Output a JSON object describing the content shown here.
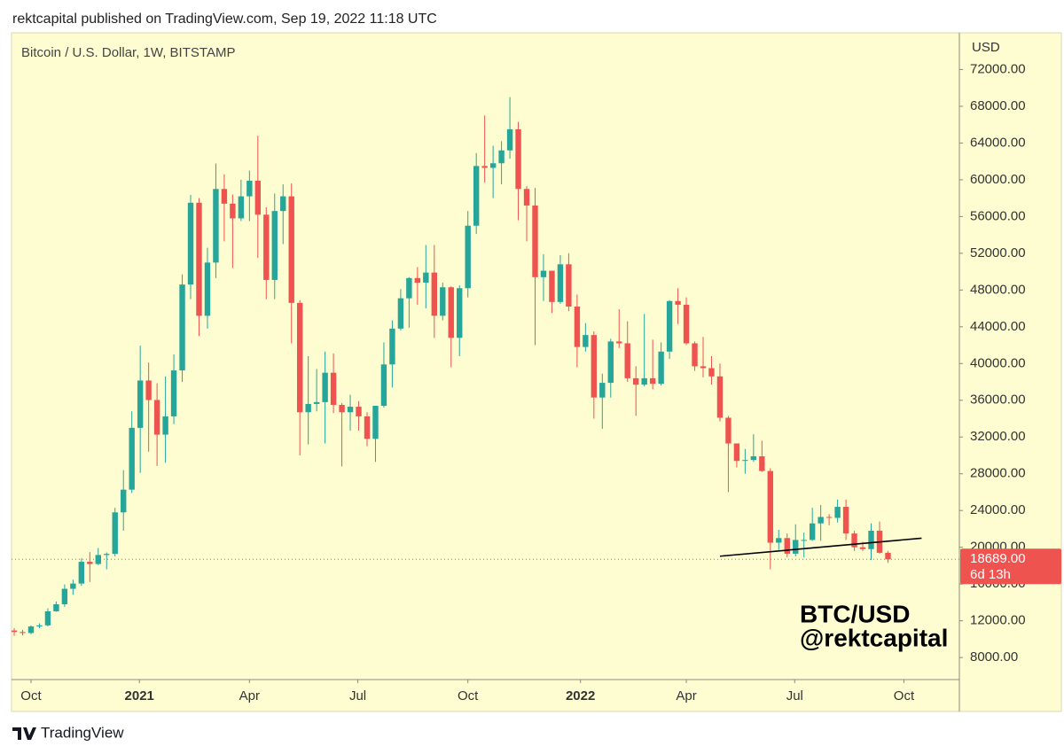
{
  "header": "rektcapital published on TradingView.com, Sep 19, 2022 11:18 UTC",
  "footer": "TradingView",
  "chart_data": {
    "type": "candlestick",
    "title": "Bitcoin / U.S. Dollar, 1W, BITSTAMP",
    "y_axis_label": "USD",
    "up_color": "#26a69a",
    "down_color": "#ef5350",
    "background": "#fefdd1",
    "grid": false,
    "open": [
      10940,
      10780,
      10670,
      11380,
      11500,
      13030,
      13800,
      15480,
      16050,
      18420,
      18180,
      19160,
      19280,
      23800,
      26270,
      33000,
      38150,
      36030,
      32260,
      34250,
      39250,
      48600,
      57500,
      45200,
      50990,
      59000,
      57400,
      55800,
      58200,
      59900,
      56200,
      49100,
      56600,
      58200,
      46600,
      34700,
      35600,
      35800,
      39000,
      35500,
      34700,
      35300,
      34250,
      31800,
      35400,
      39900,
      43800,
      47100,
      49300,
      48800,
      49900,
      45200,
      48300,
      42800,
      48200,
      55000,
      61500,
      61300,
      61800,
      63200,
      65500,
      59000,
      57200,
      49400,
      50100,
      46700,
      50800,
      46200,
      41800,
      43100,
      36300,
      37900,
      42400,
      42200,
      38400,
      37700,
      38400,
      37800,
      41300,
      46800,
      46400,
      42200,
      39700,
      39500,
      38600,
      34100,
      31300,
      29400,
      29500,
      29900,
      28300,
      20500,
      21000,
      19300,
      20800,
      20800,
      22600,
      23300,
      23200,
      24400,
      21500,
      20000,
      19800,
      21800,
      19400
    ],
    "high": [
      11180,
      11000,
      11500,
      11720,
      13350,
      14100,
      15960,
      16480,
      18800,
      19480,
      19920,
      19440,
      24300,
      28400,
      34800,
      41950,
      40100,
      37850,
      38600,
      40990,
      49700,
      58350,
      58000,
      52600,
      61780,
      60600,
      58400,
      60000,
      61000,
      64800,
      57000,
      58500,
      59500,
      59600,
      46900,
      40800,
      39400,
      41300,
      41100,
      35700,
      36600,
      35900,
      34700,
      35400,
      42300,
      44700,
      48100,
      49400,
      50500,
      52900,
      52900,
      48800,
      48400,
      48500,
      56600,
      62900,
      67000,
      63700,
      64200,
      69000,
      66300,
      59300,
      59100,
      51900,
      50100,
      51800,
      52000,
      47500,
      44400,
      43500,
      38900,
      42700,
      45900,
      44600,
      39700,
      45400,
      42600,
      42300,
      46900,
      48200,
      47200,
      42400,
      42900,
      40800,
      40000,
      34300,
      31300,
      30700,
      32300,
      31600,
      28600,
      21900,
      21500,
      22500,
      21600,
      24300,
      24600,
      23600,
      25200,
      25200,
      21800,
      20600,
      22600,
      22800,
      19600
    ],
    "low": [
      10370,
      10400,
      10530,
      11200,
      11400,
      12980,
      13520,
      14830,
      15800,
      16220,
      18060,
      17600,
      19000,
      21800,
      25900,
      28100,
      30400,
      28850,
      29200,
      33400,
      37990,
      47000,
      43000,
      43800,
      49300,
      53300,
      50400,
      55500,
      55500,
      51500,
      47000,
      47000,
      53000,
      42200,
      30000,
      31200,
      34800,
      31300,
      34600,
      28800,
      32700,
      32700,
      31000,
      29300,
      35200,
      37400,
      43600,
      43900,
      46400,
      46000,
      42800,
      44700,
      39600,
      40800,
      47200,
      54100,
      59700,
      58000,
      59500,
      62300,
      55600,
      53300,
      42000,
      46800,
      45500,
      46500,
      45700,
      39600,
      41300,
      34000,
      32900,
      36300,
      41700,
      38000,
      34300,
      37500,
      37200,
      37600,
      40500,
      44300,
      42000,
      39200,
      38500,
      37700,
      33700,
      26000,
      28700,
      28000,
      29300,
      28200,
      17600,
      19700,
      18900,
      19000,
      18900,
      20700,
      20700,
      22400,
      22700,
      20800,
      19600,
      19600,
      18600,
      19300,
      18300
    ],
    "close": [
      10780,
      10670,
      11380,
      11500,
      13030,
      13800,
      15480,
      16050,
      18420,
      18180,
      19160,
      19280,
      23800,
      26270,
      33000,
      38150,
      36030,
      32260,
      34250,
      39250,
      48600,
      57500,
      45200,
      50990,
      59000,
      57400,
      55800,
      58200,
      59900,
      56200,
      49100,
      56600,
      58200,
      46600,
      34700,
      35600,
      35800,
      39000,
      35500,
      34700,
      35300,
      34250,
      31800,
      35400,
      39900,
      43800,
      47100,
      49300,
      48800,
      49900,
      45200,
      48300,
      42800,
      48200,
      55000,
      61500,
      61300,
      61800,
      63200,
      65500,
      59000,
      57200,
      49400,
      50100,
      46700,
      50800,
      46200,
      41800,
      43100,
      36300,
      37900,
      42400,
      42200,
      38400,
      37700,
      38400,
      37800,
      41300,
      46800,
      46400,
      42200,
      39700,
      39500,
      38600,
      34100,
      31300,
      29400,
      29500,
      29900,
      28300,
      20500,
      21000,
      19300,
      20800,
      20800,
      22600,
      23300,
      23200,
      24400,
      21500,
      20000,
      19800,
      21800,
      19400,
      18689
    ],
    "xlim": [
      -0.32,
      112.5
    ],
    "xticks": [
      {
        "value": 2.0,
        "label": "Oct"
      },
      {
        "value": 14.9,
        "label": "2021"
      },
      {
        "value": 28.0,
        "label": "Apr"
      },
      {
        "value": 40.9,
        "label": "Jul"
      },
      {
        "value": 54.0,
        "label": "Oct"
      },
      {
        "value": 67.4,
        "label": "2022"
      },
      {
        "value": 80.0,
        "label": "Apr"
      },
      {
        "value": 92.9,
        "label": "Jul"
      },
      {
        "value": 105.9,
        "label": "Oct"
      }
    ],
    "ylim": [
      5600,
      76000
    ],
    "yticks": [
      {
        "value": 8000,
        "label": "8000.00"
      },
      {
        "value": 12000,
        "label": "12000.00"
      },
      {
        "value": 16000,
        "label": "16000.00"
      },
      {
        "value": 20000,
        "label": "20000.00"
      },
      {
        "value": 24000,
        "label": "24000.00"
      },
      {
        "value": 28000,
        "label": "28000.00"
      },
      {
        "value": 32000,
        "label": "32000.00"
      },
      {
        "value": 36000,
        "label": "36000.00"
      },
      {
        "value": 40000,
        "label": "40000.00"
      },
      {
        "value": 44000,
        "label": "44000.00"
      },
      {
        "value": 48000,
        "label": "48000.00"
      },
      {
        "value": 52000,
        "label": "52000.00"
      },
      {
        "value": 56000,
        "label": "56000.00"
      },
      {
        "value": 60000,
        "label": "60000.00"
      },
      {
        "value": 64000,
        "label": "64000.00"
      },
      {
        "value": 68000,
        "label": "68000.00"
      },
      {
        "value": 72000,
        "label": "72000.00"
      }
    ],
    "last_price": 18689,
    "last_price_label": "18689.00",
    "countdown": "6d 13h",
    "trendline": {
      "x": [
        84,
        108
      ],
      "y": [
        19030,
        20990
      ]
    },
    "watermark": [
      "BTC/USD",
      "@rektcapital"
    ]
  }
}
